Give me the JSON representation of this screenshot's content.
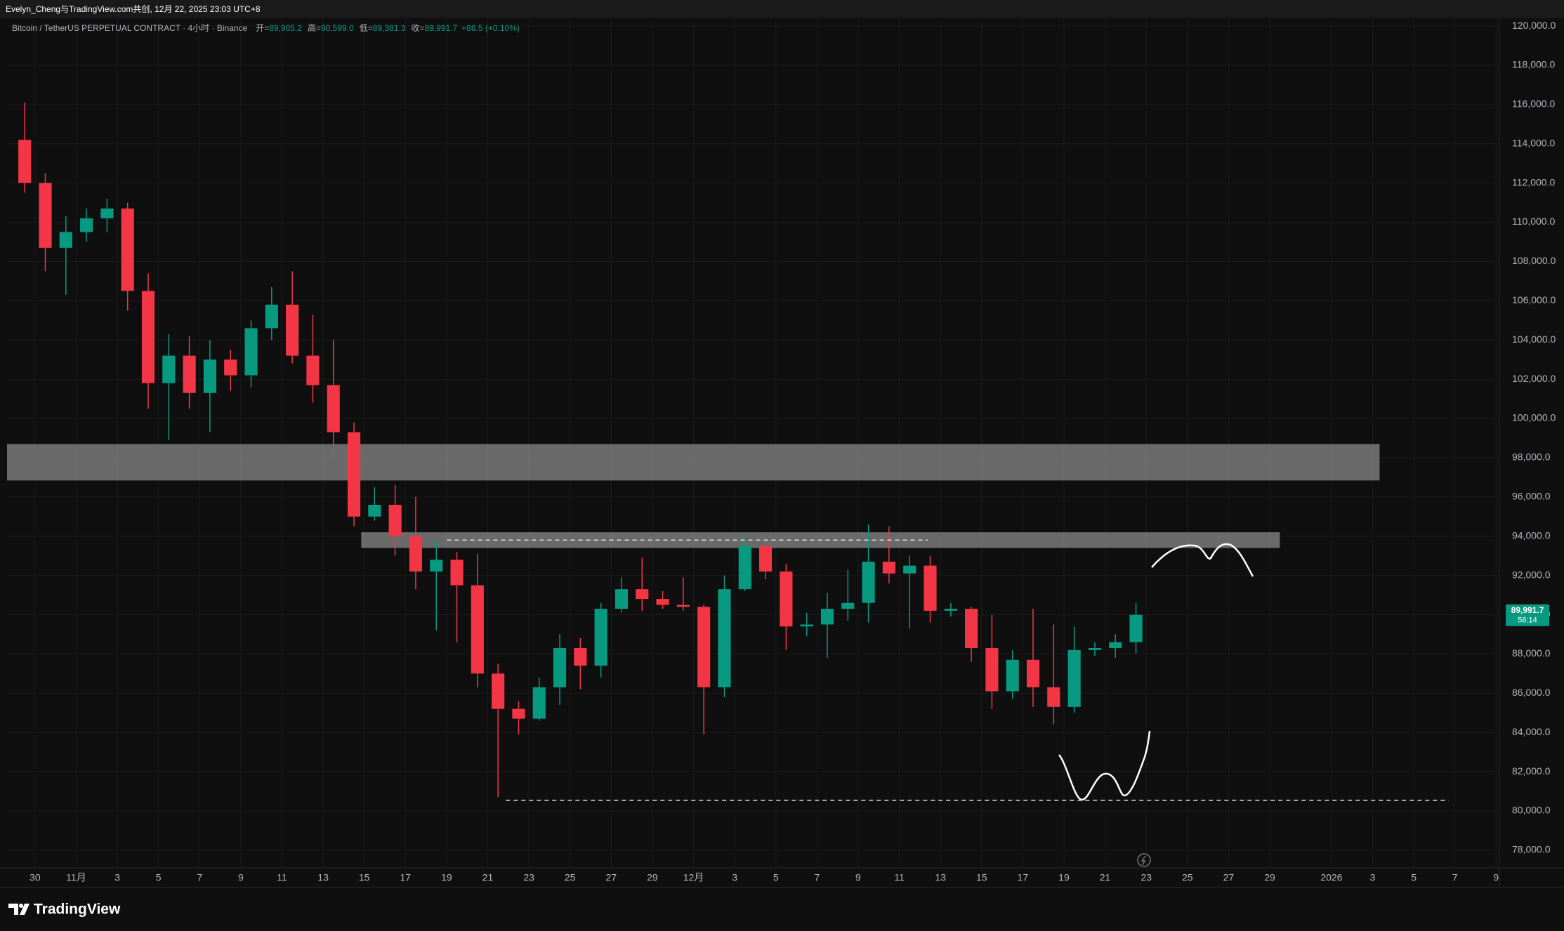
{
  "header": {
    "author": "Evelyn_Cheng与TradingView.com共创, 12月 22, 2025 23:03 UTC+8",
    "symbol": "Bitcoin / TetherUS PERPETUAL CONTRACT · 4小时 · Binance",
    "ohlc": [
      {
        "label": "开=",
        "value": "89,905.2"
      },
      {
        "label": "高=",
        "value": "90,599.0"
      },
      {
        "label": "低=",
        "value": "89,381.3"
      },
      {
        "label": "收=",
        "value": "89,991.7"
      }
    ],
    "change": "+86.5 (+0.10%)"
  },
  "footer": {
    "brand": "TradingView"
  },
  "chart_data": {
    "type": "candlestick",
    "grid": true,
    "up_color": "#089981",
    "down_color": "#f23645",
    "xlim": [
      -1.36,
      71.16
    ],
    "ylim": [
      77100,
      120360
    ],
    "price_tag": {
      "price": "89,991.7",
      "countdown": "56:14"
    },
    "yticks": [
      {
        "value": 78000,
        "label": "78,000.0"
      },
      {
        "value": 80000,
        "label": "80,000.0"
      },
      {
        "value": 82000,
        "label": "82,000.0"
      },
      {
        "value": 84000,
        "label": "84,000.0"
      },
      {
        "value": 86000,
        "label": "86,000.0"
      },
      {
        "value": 88000,
        "label": "88,000.0"
      },
      {
        "value": 90000,
        "label": "90,000.0"
      },
      {
        "value": 92000,
        "label": "92,000.0"
      },
      {
        "value": 94000,
        "label": "94,000.0"
      },
      {
        "value": 96000,
        "label": "96,000.0"
      },
      {
        "value": 98000,
        "label": "98,000.0"
      },
      {
        "value": 100000,
        "label": "100,000.0"
      },
      {
        "value": 102000,
        "label": "102,000.0"
      },
      {
        "value": 104000,
        "label": "104,000.0"
      },
      {
        "value": 106000,
        "label": "106,000.0"
      },
      {
        "value": 108000,
        "label": "108,000.0"
      },
      {
        "value": 110000,
        "label": "110,000.0"
      },
      {
        "value": 112000,
        "label": "112,000.0"
      },
      {
        "value": 114000,
        "label": "114,000.0"
      },
      {
        "value": 116000,
        "label": "116,000.0"
      },
      {
        "value": 118000,
        "label": "118,000.0"
      },
      {
        "value": 120000,
        "label": "120,000.0"
      }
    ],
    "xticks": [
      {
        "value": 0,
        "label": "30"
      },
      {
        "value": 2,
        "label": "11月"
      },
      {
        "value": 4,
        "label": "3"
      },
      {
        "value": 6,
        "label": "5"
      },
      {
        "value": 8,
        "label": "7"
      },
      {
        "value": 10,
        "label": "9"
      },
      {
        "value": 12,
        "label": "11"
      },
      {
        "value": 14,
        "label": "13"
      },
      {
        "value": 16,
        "label": "15"
      },
      {
        "value": 18,
        "label": "17"
      },
      {
        "value": 20,
        "label": "19"
      },
      {
        "value": 22,
        "label": "21"
      },
      {
        "value": 24,
        "label": "23"
      },
      {
        "value": 26,
        "label": "25"
      },
      {
        "value": 28,
        "label": "27"
      },
      {
        "value": 30,
        "label": "29"
      },
      {
        "value": 32,
        "label": "12月"
      },
      {
        "value": 34,
        "label": "3"
      },
      {
        "value": 36,
        "label": "5"
      },
      {
        "value": 38,
        "label": "7"
      },
      {
        "value": 40,
        "label": "9"
      },
      {
        "value": 42,
        "label": "11"
      },
      {
        "value": 44,
        "label": "13"
      },
      {
        "value": 46,
        "label": "15"
      },
      {
        "value": 48,
        "label": "17"
      },
      {
        "value": 50,
        "label": "19"
      },
      {
        "value": 52,
        "label": "21"
      },
      {
        "value": 54,
        "label": "23"
      },
      {
        "value": 56,
        "label": "25"
      },
      {
        "value": 58,
        "label": "27"
      },
      {
        "value": 60,
        "label": "29"
      },
      {
        "value": 63,
        "label": "2026"
      },
      {
        "value": 65,
        "label": "3"
      },
      {
        "value": 67,
        "label": "5"
      },
      {
        "value": 69,
        "label": "7"
      },
      {
        "value": 71,
        "label": "9"
      }
    ],
    "candles": {
      "x": [
        -0.5,
        0.5,
        1.5,
        2.5,
        3.5,
        4.5,
        5.5,
        6.5,
        7.5,
        8.5,
        9.5,
        10.5,
        11.5,
        12.5,
        13.5,
        14.5,
        15.5,
        16.5,
        17.5,
        18.5,
        19.5,
        20.5,
        21.5,
        22.5,
        23.5,
        24.5,
        25.5,
        26.5,
        27.5,
        28.5,
        29.5,
        30.5,
        31.5,
        32.5,
        33.5,
        34.5,
        35.5,
        36.5,
        37.5,
        38.5,
        39.5,
        40.5,
        41.5,
        42.5,
        43.5,
        44.5,
        45.5,
        46.5,
        47.5,
        48.5,
        49.5,
        50.5,
        51.5,
        52.5,
        53.5
      ],
      "open": [
        114200,
        112000,
        108700,
        109500,
        110200,
        110700,
        106500,
        101800,
        103200,
        101300,
        103000,
        102200,
        104600,
        105800,
        103200,
        101700,
        99300,
        95000,
        95600,
        94000,
        92200,
        92800,
        91500,
        87000,
        85200,
        84700,
        86300,
        88300,
        87400,
        90300,
        91300,
        90800,
        90500,
        90400,
        86300,
        91300,
        93500,
        92200,
        89400,
        89500,
        90300,
        90600,
        92700,
        92100,
        92500,
        90200,
        90300,
        88300,
        86100,
        87700,
        86300,
        85300,
        88200,
        88300,
        88600
      ],
      "high": [
        116100,
        112500,
        110300,
        110700,
        111200,
        111000,
        107400,
        104300,
        104200,
        104000,
        103500,
        105000,
        106700,
        107500,
        105300,
        104000,
        99800,
        96500,
        96600,
        96000,
        93800,
        93200,
        93100,
        87500,
        85600,
        86800,
        89000,
        88800,
        90600,
        91900,
        92900,
        91200,
        91900,
        90500,
        92000,
        94100,
        94100,
        92600,
        90100,
        91100,
        92300,
        94600,
        94500,
        93000,
        93000,
        90600,
        90400,
        90000,
        88200,
        90300,
        89500,
        89400,
        88600,
        89000,
        90599
      ],
      "low": [
        111500,
        107500,
        106300,
        109000,
        109500,
        105500,
        100500,
        98900,
        100500,
        99300,
        101400,
        101600,
        104000,
        102800,
        100800,
        98000,
        94500,
        94800,
        93000,
        91300,
        89200,
        88600,
        86300,
        80700,
        83900,
        84600,
        85400,
        86200,
        86800,
        90100,
        90200,
        90300,
        90200,
        83900,
        85800,
        91200,
        91800,
        88200,
        88900,
        87800,
        89700,
        89600,
        91600,
        89300,
        89600,
        89900,
        87600,
        85200,
        85700,
        85300,
        84400,
        85000,
        87900,
        87800,
        88000
      ],
      "close": [
        112000,
        108700,
        109500,
        110200,
        110700,
        106500,
        101800,
        103200,
        101300,
        103000,
        102200,
        104600,
        105800,
        103200,
        101700,
        99300,
        95000,
        95600,
        94000,
        92200,
        92800,
        91500,
        87000,
        85200,
        84700,
        86300,
        88300,
        87400,
        90300,
        91300,
        90800,
        90500,
        90400,
        86300,
        91300,
        93500,
        92200,
        89400,
        89500,
        90300,
        90600,
        92700,
        92100,
        92500,
        90200,
        90300,
        88300,
        86100,
        87700,
        86300,
        85300,
        88200,
        88300,
        88600,
        89991.7
      ]
    },
    "zones": [
      {
        "x": [
          -1.36,
          65.34
        ],
        "y": [
          96840,
          98700
        ],
        "color": "#8a8a8a"
      },
      {
        "x": [
          15.85,
          60.49
        ],
        "y": [
          93400,
          94200
        ],
        "color": "#8a8a8a"
      }
    ],
    "levels": [
      {
        "x": [
          20.02,
          43.38
        ],
        "y": 93800,
        "color": "#dddddd"
      },
      {
        "x": [
          22.88,
          68.69
        ],
        "y": 80540,
        "color": "#dddddd"
      }
    ]
  }
}
